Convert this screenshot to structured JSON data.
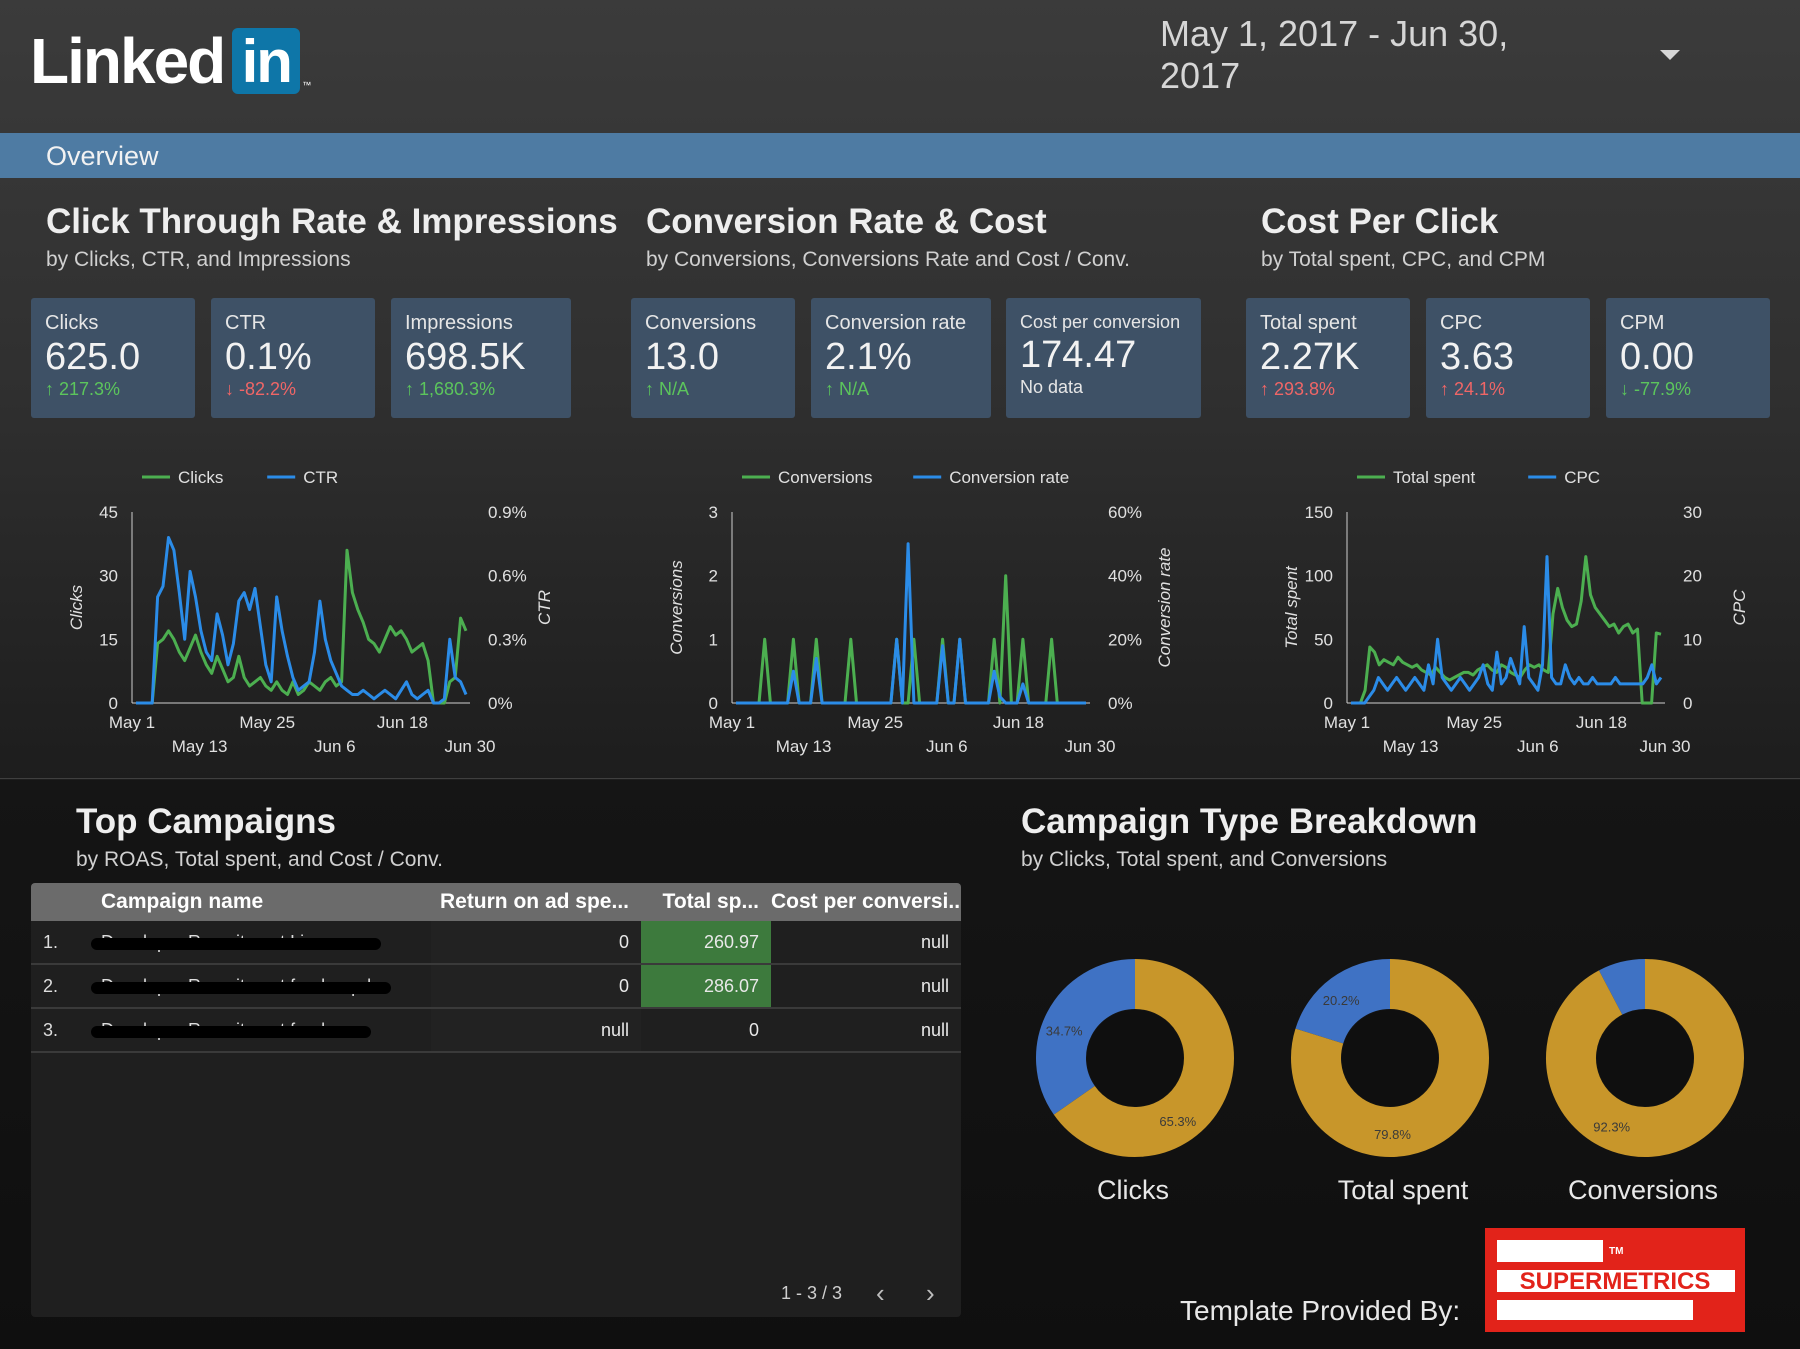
{
  "header": {
    "logo_text": "Linked",
    "logo_box_text": "in",
    "logo_tm": "™",
    "date_range": "May 1, 2017 - Jun 30, 2017"
  },
  "overview_label": "Overview",
  "sections": {
    "ctr": {
      "title": "Click Through Rate & Impressions",
      "subtitle": "by Clicks, CTR, and Impressions"
    },
    "conv": {
      "title": "Conversion Rate & Cost",
      "subtitle": "by Conversions, Conversions Rate and Cost / Conv."
    },
    "cpc": {
      "title": "Cost Per Click",
      "subtitle": "by Total spent, CPC, and CPM"
    },
    "campaigns": {
      "title": "Top Campaigns",
      "subtitle": "by ROAS, Total spent, and Cost / Conv."
    },
    "breakdown": {
      "title": "Campaign Type Breakdown",
      "subtitle": "by Clicks, Total spent, and Conversions"
    }
  },
  "kpis": [
    {
      "label": "Clicks",
      "value": "625.0",
      "delta": "217.3%",
      "arrow": "↑"
    },
    {
      "label": "CTR",
      "value": "0.1%",
      "delta": "-82.2%",
      "arrow": "↓"
    },
    {
      "label": "Impressions",
      "value": "698.5K",
      "delta": "1,680.3%",
      "arrow": "↑"
    },
    {
      "label": "Conversions",
      "value": "13.0",
      "delta": "N/A",
      "arrow": "↑"
    },
    {
      "label": "Conversion rate",
      "value": "2.1%",
      "delta": "N/A",
      "arrow": "↑"
    },
    {
      "label": "Cost per conversion",
      "value": "174.47",
      "delta": "No data",
      "arrow": ""
    },
    {
      "label": "Total spent",
      "value": "2.27K",
      "delta": "293.8%",
      "arrow": "↑"
    },
    {
      "label": "CPC",
      "value": "3.63",
      "delta": "24.1%",
      "arrow": "↑"
    },
    {
      "label": "CPM",
      "value": "0.00",
      "delta": "-77.9%",
      "arrow": "↓"
    }
  ],
  "colors": {
    "green_series": "#4caf50",
    "blue_series": "#2b8ce8",
    "donut_blue": "#3f72c4",
    "donut_gold": "#c8962a"
  },
  "chart_data": [
    {
      "type": "line",
      "legend": [
        "Clicks",
        "CTR"
      ],
      "ylabel": "Clicks",
      "y2label": "CTR",
      "ylim": [
        0,
        45
      ],
      "y2lim": [
        0,
        0.9
      ],
      "yticks": [
        "0",
        "15",
        "30",
        "45"
      ],
      "y2ticks": [
        "0%",
        "0.3%",
        "0.6%",
        "0.9%"
      ],
      "xticks_top": [
        "May 1",
        "May 25",
        "Jun 18"
      ],
      "xticks_bottom": [
        "May 13",
        "Jun 6",
        "Jun 30"
      ],
      "series": [
        {
          "name": "Clicks",
          "color": "green",
          "axis": "left",
          "values": [
            0,
            0,
            0,
            0,
            14,
            15,
            17,
            15,
            12,
            10,
            13,
            16,
            12,
            9,
            7,
            11,
            8,
            5,
            6,
            11,
            6,
            4,
            5,
            6,
            4,
            3,
            5,
            3,
            2,
            5,
            2,
            3,
            5,
            4,
            3,
            5,
            6,
            4,
            5,
            36,
            26,
            22,
            19,
            15,
            14,
            12,
            15,
            18,
            16,
            17,
            15,
            12,
            13,
            14,
            10,
            0,
            0,
            0,
            5,
            6,
            20,
            17
          ]
        },
        {
          "name": "CTR",
          "color": "blue",
          "axis": "right",
          "values": [
            0,
            0,
            0,
            0,
            0.5,
            0.55,
            0.78,
            0.72,
            0.52,
            0.3,
            0.62,
            0.5,
            0.34,
            0.24,
            0.2,
            0.42,
            0.32,
            0.18,
            0.28,
            0.48,
            0.52,
            0.44,
            0.54,
            0.36,
            0.18,
            0.1,
            0.5,
            0.34,
            0.22,
            0.12,
            0.06,
            0.08,
            0.1,
            0.24,
            0.48,
            0.3,
            0.2,
            0.14,
            0.08,
            0.06,
            0.04,
            0.04,
            0.06,
            0.04,
            0.02,
            0.04,
            0.06,
            0.04,
            0.02,
            0.06,
            0.1,
            0.04,
            0.02,
            0.04,
            0.06,
            0.0,
            0.0,
            0.02,
            0.3,
            0.12,
            0.1,
            0.04
          ]
        }
      ]
    },
    {
      "type": "line",
      "legend": [
        "Conversions",
        "Conversion rate"
      ],
      "ylabel": "Conversions",
      "y2label": "Conversion rate",
      "ylim": [
        0,
        3
      ],
      "y2lim": [
        0,
        0.6
      ],
      "yticks": [
        "0",
        "1",
        "2",
        "3"
      ],
      "y2ticks": [
        "0%",
        "20%",
        "40%",
        "60%"
      ],
      "xticks_top": [
        "May 1",
        "May 25",
        "Jun 18"
      ],
      "xticks_bottom": [
        "May 13",
        "Jun 6",
        "Jun 30"
      ],
      "series": [
        {
          "name": "Conversions",
          "color": "green",
          "axis": "left",
          "values": [
            0,
            0,
            0,
            0,
            0,
            1,
            0,
            0,
            0,
            0,
            1,
            0,
            0,
            0,
            1,
            0,
            0,
            0,
            0,
            0,
            1,
            0,
            0,
            0,
            0,
            0,
            0,
            0,
            1,
            0,
            0,
            1,
            0,
            0,
            0,
            0,
            1,
            0,
            0,
            1,
            0,
            0,
            0,
            0,
            0,
            1,
            0,
            2,
            0,
            0,
            1,
            0,
            0,
            0,
            0,
            1,
            0,
            0,
            0,
            0,
            0,
            0
          ]
        },
        {
          "name": "Conversion rate",
          "color": "blue",
          "axis": "right",
          "values": [
            0,
            0,
            0,
            0,
            0,
            0,
            0,
            0,
            0,
            0,
            0.1,
            0,
            0,
            0,
            0.14,
            0,
            0,
            0,
            0,
            0,
            0,
            0,
            0,
            0,
            0,
            0,
            0,
            0,
            0.2,
            0,
            0.5,
            0,
            0,
            0,
            0,
            0,
            0.18,
            0,
            0,
            0.2,
            0,
            0,
            0,
            0,
            0,
            0.1,
            0.02,
            0,
            0,
            0,
            0.06,
            0,
            0,
            0,
            0,
            0,
            0,
            0,
            0,
            0,
            0,
            0
          ]
        }
      ]
    },
    {
      "type": "line",
      "legend": [
        "Total spent",
        "CPC"
      ],
      "ylabel": "Total spent",
      "y2label": "CPC",
      "ylim": [
        0,
        150
      ],
      "y2lim": [
        0,
        30
      ],
      "yticks": [
        "0",
        "50",
        "100",
        "150"
      ],
      "y2ticks": [
        "0",
        "10",
        "20",
        "30"
      ],
      "xticks_top": [
        "May 1",
        "May 25",
        "Jun 18"
      ],
      "xticks_bottom": [
        "May 13",
        "Jun 6",
        "Jun 30"
      ],
      "series": [
        {
          "name": "Total spent",
          "color": "green",
          "axis": "left",
          "values": [
            0,
            0,
            0,
            10,
            44,
            40,
            30,
            34,
            32,
            30,
            36,
            32,
            30,
            28,
            30,
            26,
            24,
            22,
            28,
            24,
            20,
            18,
            20,
            22,
            24,
            24,
            22,
            26,
            28,
            30,
            26,
            24,
            30,
            28,
            24,
            22,
            20,
            26,
            30,
            28,
            30,
            26,
            24,
            70,
            90,
            75,
            65,
            60,
            62,
            80,
            115,
            85,
            75,
            70,
            65,
            60,
            62,
            55,
            60,
            62,
            55,
            58,
            0,
            0,
            0,
            55,
            54
          ]
        },
        {
          "name": "CPC",
          "color": "blue",
          "axis": "right",
          "values": [
            0,
            0,
            0,
            0,
            1,
            2,
            4,
            3,
            2,
            3,
            4,
            3,
            2,
            3,
            4,
            3,
            2,
            6,
            3,
            10,
            4,
            3,
            2,
            3,
            4,
            3,
            2,
            3,
            4,
            6,
            3,
            2,
            8,
            3,
            4,
            7,
            5,
            3,
            12,
            4,
            3,
            2,
            6,
            23,
            4,
            3,
            3,
            6,
            4,
            3,
            4,
            3,
            3,
            4,
            3,
            3,
            3,
            3,
            4,
            3,
            3,
            3,
            3,
            3,
            3,
            4,
            6,
            3,
            4
          ]
        }
      ]
    },
    {
      "type": "pie",
      "label": "Clicks",
      "slices": [
        {
          "color": "blue",
          "value": 34.7
        },
        {
          "color": "gold",
          "value": 65.3
        }
      ],
      "slice_labels": [
        "34.7%",
        "65.3%"
      ]
    },
    {
      "type": "pie",
      "label": "Total spent",
      "slices": [
        {
          "color": "blue",
          "value": 20.2
        },
        {
          "color": "gold",
          "value": 79.8
        }
      ],
      "slice_labels": [
        "20.2%",
        "79.8%"
      ]
    },
    {
      "type": "pie",
      "label": "Conversions",
      "slices": [
        {
          "color": "blue",
          "value": 7.7
        },
        {
          "color": "gold",
          "value": 92.3
        }
      ],
      "slice_labels": [
        "",
        "92.3%"
      ]
    }
  ],
  "table": {
    "headers": [
      "Campaign name",
      "Return on ad spe...",
      "Total sp...",
      "Cost per conversi..."
    ],
    "rows": [
      {
        "idx": "1.",
        "name": "Developer Recruitment Li...",
        "roas": "0",
        "spent": "260.97",
        "cpc": "null"
      },
      {
        "idx": "2.",
        "name": "Developer Recruitment feed - upd...",
        "roas": "0",
        "spent": "286.07",
        "cpc": "null"
      },
      {
        "idx": "3.",
        "name": "Developer Recruitment feed",
        "roas": "null",
        "spent": "0",
        "cpc": "null"
      }
    ],
    "pager": "1 - 3 / 3",
    "prev": "‹",
    "next": "›"
  },
  "footer": {
    "text": "Template Provided By:",
    "logo_text": "SUPERMETRICS",
    "logo_tm": "TM"
  }
}
